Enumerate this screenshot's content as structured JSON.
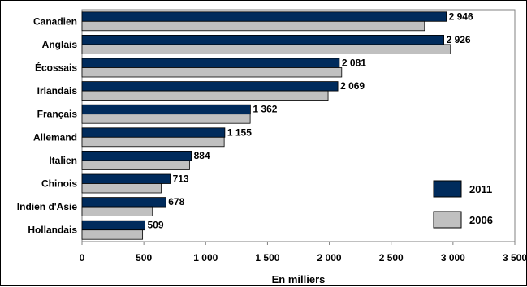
{
  "chart_data": {
    "type": "bar",
    "orientation": "horizontal",
    "categories": [
      "Canadien",
      "Anglais",
      "Écossais",
      "Irlandais",
      "Français",
      "Allemand",
      "Italien",
      "Chinois",
      "Indien d'Asie",
      "Hollandais"
    ],
    "series": [
      {
        "name": "2011",
        "color": "#002b5c",
        "values": [
          2946,
          2926,
          2081,
          2069,
          1362,
          1155,
          884,
          713,
          678,
          509
        ],
        "labels": [
          "2 946",
          "2 926",
          "2 081",
          "2 069",
          "1 362",
          "1 155",
          "884",
          "713",
          "678",
          "509"
        ]
      },
      {
        "name": "2006",
        "color": "#c0c0c0",
        "values": [
          2770,
          2980,
          2100,
          1990,
          1360,
          1150,
          870,
          640,
          570,
          490
        ]
      }
    ],
    "xlabel": "En milliers",
    "xlim": [
      0,
      3500
    ],
    "xticks": [
      0,
      500,
      1000,
      1500,
      2000,
      2500,
      3000,
      3500
    ],
    "xtick_labels": [
      "0",
      "500",
      "1 000",
      "1 500",
      "2 000",
      "2 500",
      "3 000",
      "3 500"
    ],
    "legend_position": "bottom-right",
    "grid": false
  }
}
